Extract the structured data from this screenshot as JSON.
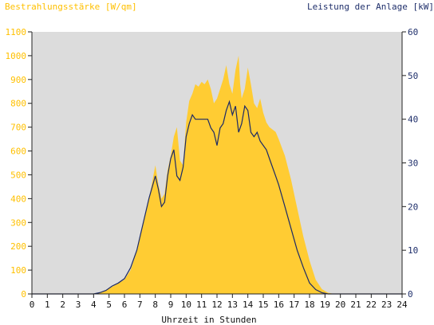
{
  "chart_data": {
    "type": "area",
    "title_left": "Bestrahlungsstärke [W/qm]",
    "title_right": "Leistung der Anlage [kW]",
    "xlabel": "Uhrzeit in Stunden",
    "x_ticks": [
      "0",
      "1",
      "2",
      "3",
      "4",
      "5",
      "6",
      "7",
      "8",
      "9",
      "10",
      "11",
      "12",
      "13",
      "14",
      "15",
      "16",
      "17",
      "18",
      "19",
      "20",
      "21",
      "22",
      "23",
      "24"
    ],
    "xlim": [
      0,
      24
    ],
    "y_left_ticks": [
      "0",
      "100",
      "200",
      "300",
      "400",
      "500",
      "600",
      "700",
      "800",
      "900",
      "1000",
      "1100"
    ],
    "ylim_left": [
      0,
      1100
    ],
    "y_right_ticks": [
      "0",
      "10",
      "20",
      "30",
      "40",
      "50",
      "60"
    ],
    "ylim_right": [
      0,
      60
    ],
    "grid": false,
    "colors": {
      "irradiance": "#ffcc33",
      "power": "#1c2a66",
      "plot_bg": "#dcdcdc",
      "left_axis_text": "#ffc000",
      "right_axis_text": "#1f2f6b"
    },
    "series": [
      {
        "axis": "left",
        "x": [
          0,
          4,
          4.4,
          4.8,
          5.2,
          5.6,
          6,
          6.4,
          6.8,
          7.2,
          7.6,
          8.0,
          8.2,
          8.4,
          8.6,
          8.8,
          9.0,
          9.2,
          9.4,
          9.6,
          9.8,
          10.0,
          10.2,
          10.4,
          10.6,
          10.8,
          11.0,
          11.2,
          11.4,
          11.6,
          11.8,
          12.0,
          12.2,
          12.4,
          12.6,
          12.8,
          13.0,
          13.2,
          13.4,
          13.5,
          13.6,
          13.8,
          14.0,
          14.2,
          14.4,
          14.6,
          14.8,
          15.0,
          15.2,
          15.4,
          15.6,
          15.8,
          16.0,
          16.4,
          16.8,
          17.2,
          17.6,
          18.0,
          18.4,
          18.8,
          19.2,
          19.6,
          20.0,
          20.4,
          21,
          24
        ],
        "values": [
          0,
          0,
          5,
          15,
          30,
          45,
          60,
          100,
          180,
          300,
          400,
          540,
          460,
          400,
          420,
          520,
          580,
          660,
          700,
          560,
          540,
          720,
          810,
          840,
          880,
          870,
          890,
          880,
          900,
          860,
          800,
          820,
          860,
          900,
          960,
          880,
          840,
          940,
          1000,
          880,
          820,
          860,
          950,
          880,
          800,
          780,
          820,
          760,
          720,
          700,
          690,
          680,
          650,
          580,
          480,
          360,
          240,
          140,
          60,
          20,
          5,
          0,
          0,
          0,
          0,
          0
        ]
      },
      {
        "axis": "right",
        "x": [
          0,
          4,
          4.4,
          4.8,
          5.2,
          5.6,
          6,
          6.4,
          6.8,
          7.2,
          7.6,
          8.0,
          8.2,
          8.4,
          8.6,
          8.8,
          9.0,
          9.2,
          9.4,
          9.6,
          9.8,
          10.0,
          10.2,
          10.4,
          10.6,
          10.8,
          11.0,
          11.2,
          11.4,
          11.6,
          11.8,
          12.0,
          12.2,
          12.4,
          12.6,
          12.8,
          13.0,
          13.2,
          13.4,
          13.6,
          13.8,
          14.0,
          14.2,
          14.4,
          14.6,
          14.8,
          15.0,
          15.2,
          15.4,
          15.6,
          15.8,
          16.0,
          16.4,
          16.8,
          17.2,
          17.6,
          18.0,
          18.4,
          18.8,
          19.2,
          19.6,
          20.0,
          20.4,
          24
        ],
        "values": [
          0,
          0,
          0.3,
          0.8,
          1.8,
          2.5,
          3.5,
          6,
          10,
          16,
          22,
          27,
          24,
          20,
          21,
          27,
          31,
          33,
          27,
          26,
          29,
          36,
          39,
          41,
          40,
          40,
          40,
          40,
          40,
          38,
          37,
          34,
          38,
          39,
          42,
          44,
          41,
          43,
          37,
          39,
          43,
          42,
          37,
          36,
          37,
          35,
          34,
          33,
          31,
          29,
          27,
          25,
          20,
          15,
          10,
          6,
          2.5,
          1,
          0.3,
          0,
          0,
          0,
          0,
          0
        ]
      }
    ]
  }
}
